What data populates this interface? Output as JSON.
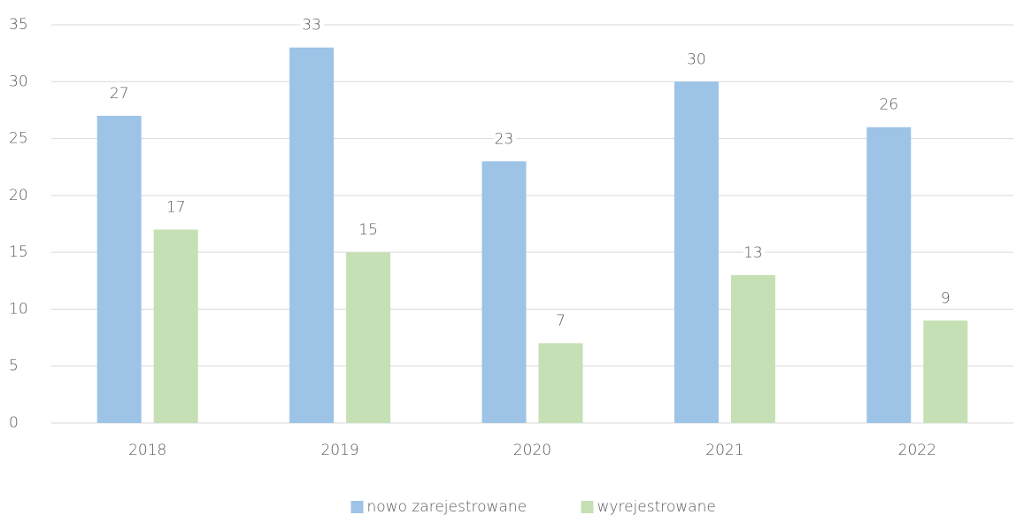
{
  "chart_data": {
    "type": "bar",
    "categories": [
      "2018",
      "2019",
      "2020",
      "2021",
      "2022"
    ],
    "series": [
      {
        "name": "nowo zarejestrowane",
        "color": "#9dc3e6",
        "values": [
          27,
          33,
          23,
          30,
          26
        ]
      },
      {
        "name": "wyrejestrowane",
        "color": "#c5e0b4",
        "values": [
          17,
          15,
          7,
          13,
          9
        ]
      }
    ],
    "ylim": [
      0,
      35
    ],
    "yticks": [
      0,
      5,
      10,
      15,
      20,
      25,
      30,
      35
    ],
    "grid": true,
    "legend": "bottom"
  }
}
